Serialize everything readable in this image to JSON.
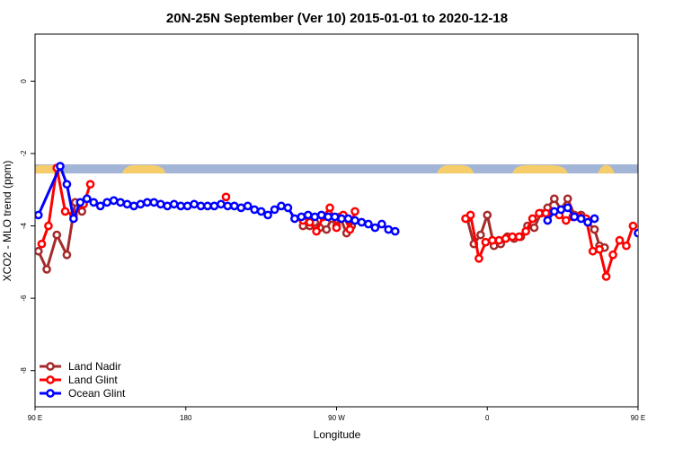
{
  "chart_data": {
    "type": "line",
    "title": "20N-25N September (Ver 10)   2015-01-01 to 2020-12-18",
    "xlabel": "Longitude",
    "ylabel": "XCO2 - MLO trend (ppm)",
    "xlim": [
      0,
      360
    ],
    "ylim": [
      -9,
      1.3
    ],
    "x_ticks": [
      {
        "value": 0,
        "label": "90 E"
      },
      {
        "value": 90,
        "label": "180"
      },
      {
        "value": 180,
        "label": "90 W"
      },
      {
        "value": 270,
        "label": "0"
      },
      {
        "value": 360,
        "label": "90 E"
      }
    ],
    "y_ticks": [
      0,
      -2,
      -4,
      -6,
      -8
    ],
    "map_band": {
      "y_top": -2.3,
      "y_bottom": -2.55,
      "ocean_color": "#a3b5d6",
      "land_color": "#f5cd6b"
    },
    "legend_position": "bottom-left",
    "series": [
      {
        "name": "Land Nadir",
        "color": "#a52a2a",
        "segments": [
          [
            [
              2,
              -4.7
            ],
            [
              7,
              -5.2
            ],
            [
              13,
              -4.25
            ],
            [
              19,
              -4.8
            ],
            [
              24,
              -3.35
            ],
            [
              28,
              -3.6
            ]
          ],
          [
            [
              160,
              -4
            ],
            [
              164,
              -4
            ],
            [
              167,
              -3.9
            ],
            [
              170,
              -4.05
            ],
            [
              174,
              -4.1
            ],
            [
              177,
              -3.8
            ],
            [
              180,
              -4.0
            ],
            [
              182,
              -3.75
            ],
            [
              186,
              -4.2
            ],
            [
              189,
              -4.0
            ]
          ],
          [
            [
              258,
              -3.8
            ],
            [
              262,
              -4.5
            ],
            [
              266,
              -4.25
            ],
            [
              270,
              -3.7
            ],
            [
              274,
              -4.55
            ],
            [
              278,
              -4.5
            ],
            [
              282,
              -4.3
            ],
            [
              286,
              -4.35
            ],
            [
              290,
              -4.3
            ],
            [
              294,
              -4.0
            ],
            [
              298,
              -4.05
            ],
            [
              302,
              -3.65
            ],
            [
              306,
              -3.5
            ],
            [
              310,
              -3.25
            ],
            [
              314,
              -3.55
            ],
            [
              318,
              -3.25
            ],
            [
              322,
              -3.7
            ],
            [
              326,
              -3.7
            ],
            [
              330,
              -3.9
            ],
            [
              334,
              -4.1
            ],
            [
              337,
              -4.55
            ],
            [
              340,
              -4.6
            ]
          ],
          [
            [
              367,
              -4.2
            ],
            [
              372,
              -4.7
            ],
            [
              376,
              -5.15
            ],
            [
              380,
              -4.25
            ],
            [
              384,
              -4.8
            ],
            [
              388,
              -3.3
            ],
            [
              391,
              -3.6
            ]
          ]
        ]
      },
      {
        "name": "Land Glint",
        "color": "#ff0000",
        "segments": [
          [
            [
              4,
              -4.5
            ],
            [
              8,
              -4.0
            ],
            [
              13,
              -2.4
            ],
            [
              18,
              -3.6
            ],
            [
              23,
              -3.7
            ],
            [
              29,
              -3.4
            ],
            [
              33,
              -2.85
            ]
          ],
          [
            [
              114,
              -3.2
            ]
          ],
          [
            [
              160,
              -3.85
            ],
            [
              164,
              -3.9
            ],
            [
              168,
              -4.15
            ],
            [
              172,
              -3.75
            ],
            [
              176,
              -3.5
            ],
            [
              180,
              -4.05
            ],
            [
              184,
              -3.7
            ],
            [
              188,
              -4.1
            ],
            [
              191,
              -3.6
            ]
          ],
          [
            [
              257,
              -3.8
            ],
            [
              260,
              -3.7
            ],
            [
              265,
              -4.9
            ],
            [
              269,
              -4.45
            ],
            [
              273,
              -4.4
            ],
            [
              277,
              -4.4
            ],
            [
              281,
              -4.35
            ],
            [
              285,
              -4.3
            ],
            [
              289,
              -4.3
            ],
            [
              293,
              -4.15
            ],
            [
              297,
              -3.8
            ],
            [
              301,
              -3.65
            ],
            [
              305,
              -3.65
            ],
            [
              309,
              -3.6
            ],
            [
              313,
              -3.7
            ],
            [
              317,
              -3.85
            ],
            [
              321,
              -3.75
            ],
            [
              325,
              -3.75
            ],
            [
              329,
              -3.8
            ],
            [
              333,
              -4.7
            ],
            [
              337,
              -4.65
            ],
            [
              341,
              -5.4
            ],
            [
              345,
              -4.8
            ],
            [
              349,
              -4.4
            ],
            [
              353,
              -4.55
            ],
            [
              357,
              -4.0
            ]
          ],
          [
            [
              368,
              -2.4
            ],
            [
              372,
              -3.6
            ],
            [
              376,
              -3.7
            ],
            [
              380,
              -3.45
            ],
            [
              384,
              -2.85
            ]
          ]
        ]
      },
      {
        "name": "Ocean Glint",
        "color": "#0000ff",
        "segments": [
          [
            [
              2,
              -3.7
            ],
            [
              15,
              -2.35
            ],
            [
              19,
              -2.85
            ],
            [
              23,
              -3.8
            ],
            [
              27,
              -3.35
            ],
            [
              31,
              -3.25
            ],
            [
              35,
              -3.35
            ],
            [
              39,
              -3.45
            ],
            [
              43,
              -3.35
            ],
            [
              47,
              -3.3
            ],
            [
              51,
              -3.35
            ],
            [
              55,
              -3.4
            ],
            [
              59,
              -3.45
            ],
            [
              63,
              -3.4
            ],
            [
              67,
              -3.35
            ],
            [
              71,
              -3.35
            ],
            [
              75,
              -3.4
            ],
            [
              79,
              -3.45
            ],
            [
              83,
              -3.4
            ],
            [
              87,
              -3.45
            ],
            [
              91,
              -3.45
            ],
            [
              95,
              -3.4
            ],
            [
              99,
              -3.45
            ],
            [
              103,
              -3.45
            ],
            [
              107,
              -3.45
            ],
            [
              111,
              -3.4
            ],
            [
              115,
              -3.45
            ],
            [
              119,
              -3.45
            ],
            [
              123,
              -3.5
            ],
            [
              127,
              -3.45
            ],
            [
              131,
              -3.55
            ],
            [
              135,
              -3.6
            ],
            [
              139,
              -3.7
            ],
            [
              143,
              -3.55
            ],
            [
              147,
              -3.45
            ],
            [
              151,
              -3.5
            ],
            [
              155,
              -3.8
            ],
            [
              159,
              -3.75
            ],
            [
              163,
              -3.7
            ],
            [
              167,
              -3.75
            ],
            [
              171,
              -3.7
            ],
            [
              175,
              -3.75
            ],
            [
              179,
              -3.75
            ],
            [
              183,
              -3.8
            ],
            [
              187,
              -3.8
            ],
            [
              191,
              -3.85
            ],
            [
              195,
              -3.9
            ],
            [
              199,
              -3.95
            ],
            [
              203,
              -4.05
            ],
            [
              207,
              -3.95
            ],
            [
              211,
              -4.1
            ],
            [
              215,
              -4.15
            ]
          ],
          [
            [
              306,
              -3.85
            ],
            [
              310,
              -3.6
            ],
            [
              314,
              -3.55
            ],
            [
              318,
              -3.5
            ],
            [
              322,
              -3.75
            ],
            [
              326,
              -3.8
            ],
            [
              330,
              -3.9
            ],
            [
              334,
              -3.8
            ]
          ],
          [
            [
              360,
              -4.2
            ],
            [
              364,
              -3.7
            ]
          ],
          [
            [
              366,
              -2.35
            ],
            [
              370,
              -2.85
            ],
            [
              374,
              -3.75
            ],
            [
              378,
              -3.35
            ],
            [
              382,
              -3.3
            ],
            [
              386,
              -3.35
            ],
            [
              390,
              -3.4
            ],
            [
              394,
              -3.3
            ],
            [
              398,
              -3.35
            ]
          ]
        ]
      }
    ]
  }
}
